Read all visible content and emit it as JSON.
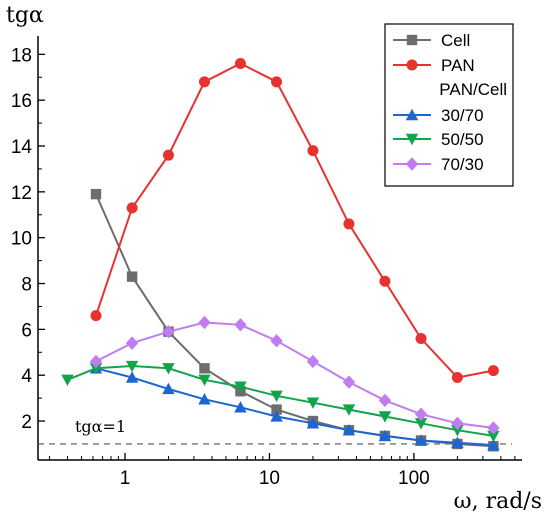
{
  "chart_data": {
    "type": "line",
    "xlabel": "ω, rad/s",
    "ylabel": "tgα",
    "xscale": "log",
    "xlim": [
      0.25,
      560
    ],
    "ylim": [
      0.3,
      18.8
    ],
    "x_ticks": [
      1,
      10,
      100
    ],
    "x_tick_labels": [
      "1",
      "10",
      "100"
    ],
    "y_ticks": [
      2,
      4,
      6,
      8,
      10,
      12,
      14,
      16,
      18
    ],
    "grid": false,
    "legend_position": "top-right",
    "legend_group_title": "PAN/Cell",
    "reference_line": {
      "y": 1,
      "label": "tgα=1",
      "style": "dashed"
    },
    "series": [
      {
        "name": "Cell",
        "color": "#6d6d6d",
        "marker": "square",
        "x": [
          0.63,
          1.12,
          2.0,
          3.55,
          6.3,
          11.2,
          20,
          35.5,
          63,
          112,
          200,
          355
        ],
        "y": [
          11.9,
          8.3,
          5.9,
          4.3,
          3.3,
          2.5,
          2.0,
          1.6,
          1.35,
          1.15,
          1.0,
          0.9
        ]
      },
      {
        "name": "PAN",
        "color": "#e8322f",
        "marker": "circle",
        "x": [
          0.63,
          1.12,
          2.0,
          3.55,
          6.3,
          11.2,
          20,
          35.5,
          63,
          112,
          200,
          355
        ],
        "y": [
          6.6,
          11.3,
          13.6,
          16.8,
          17.6,
          16.8,
          13.8,
          10.6,
          8.1,
          5.6,
          3.9,
          4.2
        ]
      },
      {
        "name": "30/70",
        "color": "#1b66d2",
        "marker": "triangle-up",
        "x": [
          0.63,
          1.12,
          2.0,
          3.55,
          6.3,
          11.2,
          20,
          35.5,
          63,
          112,
          200,
          355
        ],
        "y": [
          4.3,
          3.9,
          3.4,
          2.95,
          2.6,
          2.2,
          1.9,
          1.6,
          1.35,
          1.15,
          1.05,
          0.95
        ]
      },
      {
        "name": "50/50",
        "color": "#12a44a",
        "marker": "triangle-down",
        "x": [
          0.4,
          0.63,
          1.12,
          2.0,
          3.55,
          6.3,
          11.2,
          20,
          35.5,
          63,
          112,
          200,
          355
        ],
        "y": [
          3.8,
          4.3,
          4.4,
          4.3,
          3.8,
          3.5,
          3.1,
          2.8,
          2.5,
          2.2,
          1.9,
          1.6,
          1.35
        ]
      },
      {
        "name": "70/30",
        "color": "#c07df0",
        "marker": "diamond",
        "x": [
          0.63,
          1.12,
          2.0,
          3.55,
          6.3,
          11.2,
          20,
          35.5,
          63,
          112,
          200,
          355
        ],
        "y": [
          4.6,
          5.4,
          5.9,
          6.3,
          6.2,
          5.5,
          4.6,
          3.7,
          2.9,
          2.3,
          1.9,
          1.7
        ]
      }
    ]
  }
}
